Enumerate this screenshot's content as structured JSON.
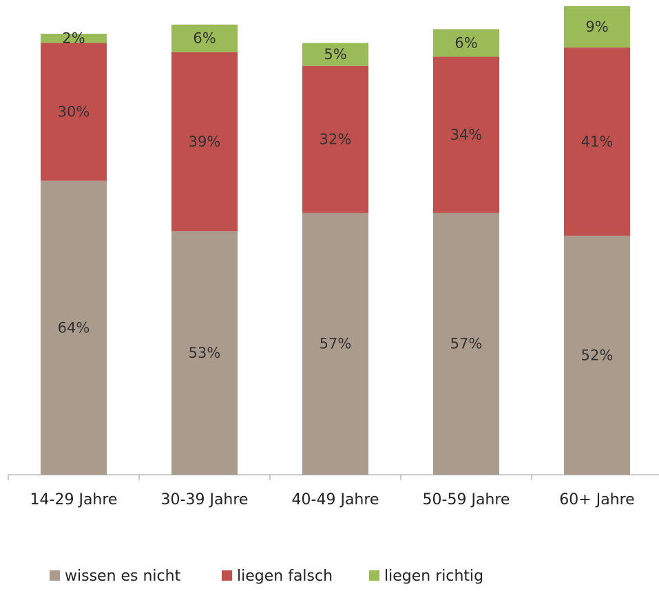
{
  "chart_data": {
    "type": "stacked_bar",
    "categories": [
      "14-29 Jahre",
      "30-39 Jahre",
      "40-49 Jahre",
      "50-59 Jahre",
      "60+ Jahre"
    ],
    "series": [
      {
        "name": "wissen es nicht",
        "color": "#ab9b8c",
        "values": [
          64,
          53,
          57,
          57,
          52
        ],
        "value_labels": [
          "64%",
          "53%",
          "57%",
          "57%",
          "52%"
        ]
      },
      {
        "name": "liegen falsch",
        "color": "#c0504d",
        "values": [
          30,
          39,
          32,
          34,
          41
        ],
        "value_labels": [
          "30%",
          "39%",
          "32%",
          "34%",
          "41%"
        ]
      },
      {
        "name": "liegen richtig",
        "color": "#9bbb59",
        "values": [
          2,
          6,
          5,
          6,
          9
        ],
        "value_labels": [
          "2%",
          "6%",
          "5%",
          "6%",
          "9%"
        ]
      }
    ],
    "legend": "bottom"
  }
}
